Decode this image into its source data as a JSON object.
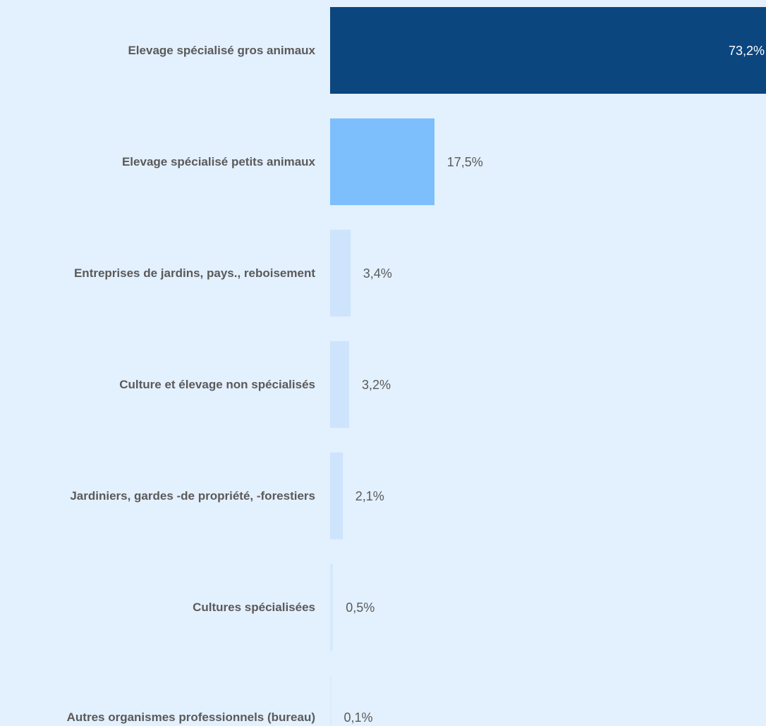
{
  "chart_data": {
    "type": "bar",
    "orientation": "horizontal",
    "categories": [
      "Elevage spécialisé gros animaux",
      "Elevage spécialisé petits animaux",
      "Entreprises de jardins, pays., reboisement",
      "Culture et élevage non spécialisés",
      "Jardiniers, gardes -de propriété, -forestiers",
      "Cultures spécialisées",
      "Autres organismes professionnels (bureau)"
    ],
    "values": [
      73.2,
      17.5,
      3.4,
      3.2,
      2.1,
      0.5,
      0.1
    ],
    "value_labels": [
      "73,2%",
      "17,5%",
      "3,4%",
      "3,2%",
      "2,1%",
      "0,5%",
      "0,1%"
    ],
    "xlim": [
      0,
      73.2
    ],
    "grid": false,
    "legend": "none",
    "bar_colors": [
      "#0b467f",
      "#7dbffc",
      "#cde4fc",
      "#cde4fc",
      "#cde4fc",
      "#d6e9fc",
      "#dcebfc"
    ],
    "label_colors": {
      "inside": "#ffffff",
      "outside": "#5a5a5a"
    }
  }
}
